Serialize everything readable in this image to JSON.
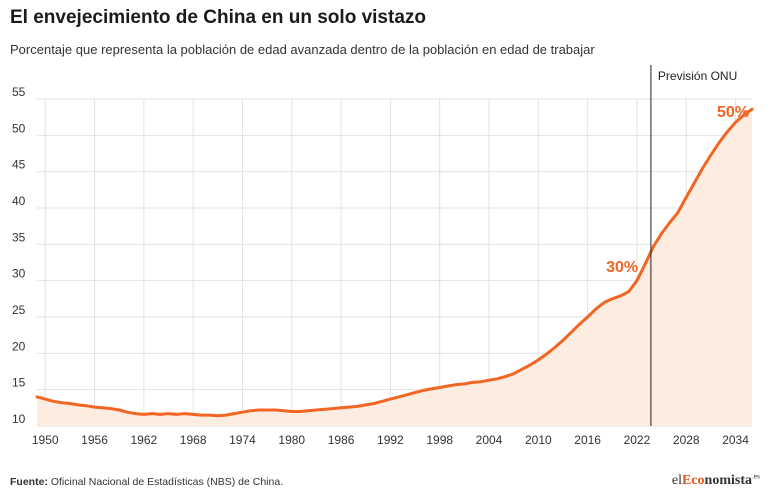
{
  "header": {
    "title": "El envejecimiento de China en un solo vistazo",
    "subtitle": "Porcentaje que representa la población de edad avanzada dentro de la población en edad de trabajar"
  },
  "footer": {
    "source_label": "Fuente:",
    "source_text": " Oficinal Nacional de Estadísticas (NBS) de China."
  },
  "logo": {
    "pre": "el",
    "accent": "Eco",
    "main": "nomista",
    "suffix": ".es"
  },
  "colors": {
    "line": "#f26522",
    "fill": "#fdece0",
    "grid": "#e2e2e2",
    "divider": "#222222",
    "accent": "#e8561d"
  },
  "chart_data": {
    "type": "area",
    "xlim": [
      1949,
      2036
    ],
    "ylim": [
      10,
      55
    ],
    "yticks": [
      10,
      15,
      20,
      25,
      30,
      35,
      40,
      45,
      50,
      55
    ],
    "xticks": [
      1950,
      1956,
      1962,
      1968,
      1974,
      1980,
      1986,
      1992,
      1998,
      2004,
      2010,
      2016,
      2022,
      2028,
      2034
    ],
    "grid": true,
    "divider": {
      "x": 2023.7,
      "label": "Previsión ONU"
    },
    "annotations": [
      {
        "x": 2023,
        "y": 30,
        "text": "30%"
      },
      {
        "x": 2035,
        "y": 50,
        "text": "50%"
      }
    ],
    "series": [
      {
        "x": [
          1949,
          1950,
          1951,
          1952,
          1953,
          1954,
          1955,
          1956,
          1957,
          1958,
          1959,
          1960,
          1961,
          1962,
          1963,
          1964,
          1965,
          1966,
          1967,
          1968,
          1969,
          1970,
          1971,
          1972,
          1973,
          1974,
          1975,
          1976,
          1977,
          1978,
          1979,
          1980,
          1981,
          1982,
          1983,
          1984,
          1985,
          1986,
          1987,
          1988,
          1989,
          1990,
          1991,
          1992,
          1993,
          1994,
          1995,
          1996,
          1997,
          1998,
          1999,
          2000,
          2001,
          2002,
          2003,
          2004,
          2005,
          2006,
          2007,
          2008,
          2009,
          2010,
          2011,
          2012,
          2013,
          2014,
          2015,
          2016,
          2017,
          2018,
          2019,
          2020,
          2021,
          2022,
          2023,
          2024,
          2025,
          2026,
          2027,
          2028,
          2029,
          2030,
          2031,
          2032,
          2033,
          2034,
          2035,
          2036
        ],
        "y": [
          14.0,
          13.7,
          13.4,
          13.2,
          13.1,
          12.9,
          12.8,
          12.6,
          12.5,
          12.4,
          12.2,
          11.9,
          11.7,
          11.6,
          11.7,
          11.6,
          11.7,
          11.6,
          11.7,
          11.6,
          11.5,
          11.5,
          11.4,
          11.5,
          11.7,
          11.9,
          12.1,
          12.2,
          12.2,
          12.2,
          12.1,
          12.0,
          12.0,
          12.1,
          12.2,
          12.3,
          12.4,
          12.5,
          12.6,
          12.7,
          12.9,
          13.1,
          13.4,
          13.7,
          14.0,
          14.3,
          14.6,
          14.9,
          15.1,
          15.3,
          15.5,
          15.7,
          15.8,
          16.0,
          16.1,
          16.3,
          16.5,
          16.8,
          17.2,
          17.8,
          18.4,
          19.1,
          19.9,
          20.8,
          21.8,
          22.9,
          24.0,
          25.0,
          26.1,
          27.0,
          27.5,
          27.9,
          28.5,
          30.0,
          32.3,
          34.7,
          36.5,
          38.0,
          39.4,
          41.5,
          43.5,
          45.5,
          47.3,
          49.0,
          50.5,
          51.8,
          52.8,
          53.6
        ]
      }
    ]
  }
}
